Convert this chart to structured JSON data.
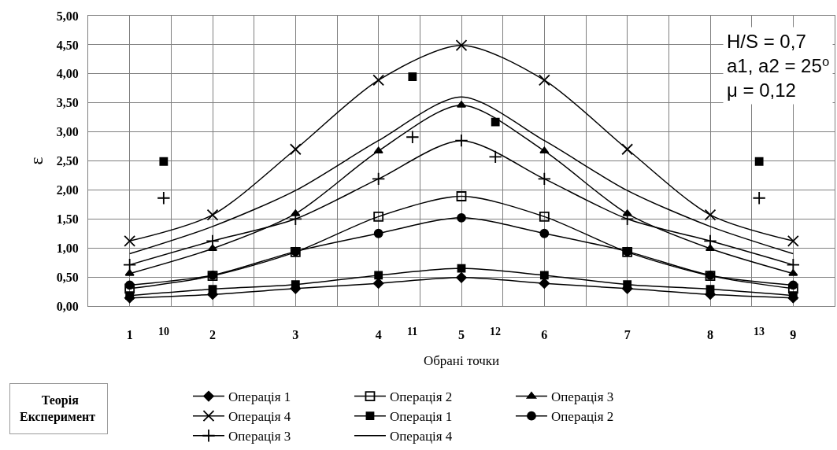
{
  "chart_data": {
    "type": "line",
    "xlabel": "Обрані точки",
    "ylabel": "ε",
    "x": [
      1,
      2,
      3,
      4,
      5,
      6,
      7,
      8,
      9
    ],
    "xlim": [
      0.5,
      9.5
    ],
    "xticks": [
      1,
      2,
      3,
      4,
      5,
      6,
      7,
      8,
      9,
      {
        "value": 1.5,
        "label": null
      },
      {
        "value": 2.5,
        "label": null
      },
      {
        "value": 3.5,
        "label": null
      },
      {
        "value": 4.5,
        "label": null
      },
      {
        "value": 5.5,
        "label": null
      },
      {
        "value": 6.5,
        "label": null
      },
      {
        "value": 7.5,
        "label": null
      },
      {
        "value": 8.5,
        "label": null
      }
    ],
    "ylim": [
      0,
      5
    ],
    "yticks": [
      {
        "value": 0,
        "label": "0,00"
      },
      {
        "value": 0.5,
        "label": "0,50"
      },
      {
        "value": 1,
        "label": "1,00"
      },
      {
        "value": 1.5,
        "label": "1,50"
      },
      {
        "value": 2,
        "label": "2,00"
      },
      {
        "value": 2.5,
        "label": "2,50"
      },
      {
        "value": 3,
        "label": "3,00"
      },
      {
        "value": 3.5,
        "label": "3,50"
      },
      {
        "value": 4,
        "label": "4,00"
      },
      {
        "value": 4.5,
        "label": "4,50"
      },
      {
        "value": 5,
        "label": "5,00"
      }
    ],
    "grid": true,
    "legend": "bottom",
    "line_style": "solid",
    "series": [
      {
        "name": "Операція 1",
        "color": "#000000",
        "marker": "diamond",
        "values": [
          0.14,
          0.2,
          0.3,
          0.39,
          0.49,
          0.39,
          0.3,
          0.2,
          0.14
        ]
      },
      {
        "name": "Операція 2",
        "color": "#000000",
        "marker": "square-open",
        "values": [
          0.3,
          0.52,
          0.93,
          1.54,
          1.89,
          1.54,
          0.93,
          0.52,
          0.3
        ]
      },
      {
        "name": "Операція 3",
        "color": "#000000",
        "marker": "triangle",
        "values": [
          0.56,
          0.99,
          1.59,
          2.67,
          3.46,
          2.67,
          1.59,
          0.99,
          0.56
        ]
      },
      {
        "name": "Операція 4",
        "color": "#000000",
        "marker": "cross",
        "values": [
          1.12,
          1.57,
          2.7,
          3.89,
          4.49,
          3.89,
          2.7,
          1.57,
          1.12
        ]
      },
      {
        "name": "Операція 1",
        "color": "#000000",
        "marker": "square",
        "values": [
          0.18,
          0.29,
          0.37,
          0.53,
          0.65,
          0.53,
          0.37,
          0.29,
          0.18
        ]
      },
      {
        "name": "Операція 2",
        "color": "#000000",
        "marker": "circle",
        "values": [
          0.36,
          0.53,
          0.94,
          1.25,
          1.52,
          1.25,
          0.94,
          0.53,
          0.36
        ]
      },
      {
        "name": "Операція 3",
        "color": "#000000",
        "marker": "plus",
        "values": [
          0.71,
          1.12,
          1.5,
          2.19,
          2.85,
          2.19,
          1.5,
          1.12,
          0.71
        ]
      },
      {
        "name": "Операція 4",
        "color": "#000000",
        "values": [
          0.9,
          1.37,
          1.99,
          2.85,
          3.6,
          2.85,
          1.99,
          1.37,
          0.9
        ]
      },
      {
        "type": "scatter",
        "color": "#000000",
        "marker": "plus",
        "x": [
          1.41,
          4.41,
          5.41,
          8.59
        ],
        "values": [
          1.86,
          2.91,
          2.57,
          1.86
        ]
      },
      {
        "type": "scatter",
        "color": "#000000",
        "marker": "square",
        "x": [
          1.41,
          4.41,
          5.41,
          8.59
        ],
        "values": [
          2.49,
          3.95,
          3.17,
          2.49
        ]
      }
    ],
    "annotations": [
      "H/S = 0,7\na1, a2 = 25⁰\nμ = 0,12",
      "Теорія\nЕксперимент",
      "10",
      "11",
      "12",
      "13"
    ]
  }
}
